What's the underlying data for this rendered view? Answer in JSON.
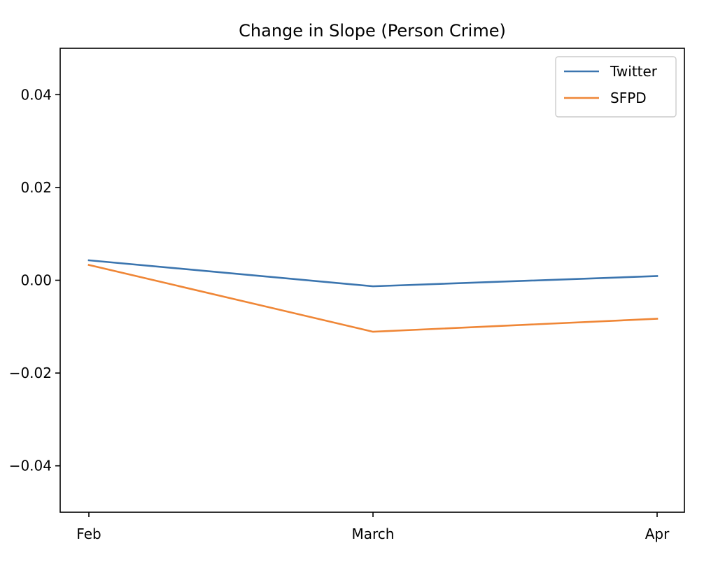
{
  "chart_data": {
    "type": "line",
    "title": "Change in Slope (Person Crime)",
    "xlabel": "",
    "ylabel": "",
    "categories": [
      "Feb",
      "March",
      "Apr"
    ],
    "series": [
      {
        "name": "Twitter",
        "color": "#3b75af",
        "values": [
          0.0043,
          -0.0013,
          0.0009
        ]
      },
      {
        "name": "SFPD",
        "color": "#ef8636",
        "values": [
          0.0033,
          -0.0111,
          -0.0083
        ]
      }
    ],
    "ylim": [
      -0.05,
      0.05
    ],
    "yticks": [
      0.04,
      0.02,
      0.0,
      -0.02,
      -0.04
    ],
    "ytick_labels": [
      "0.04",
      "0.02",
      "0.00",
      "−0.02",
      "−0.04"
    ],
    "grid": false,
    "legend_position": "upper right"
  }
}
